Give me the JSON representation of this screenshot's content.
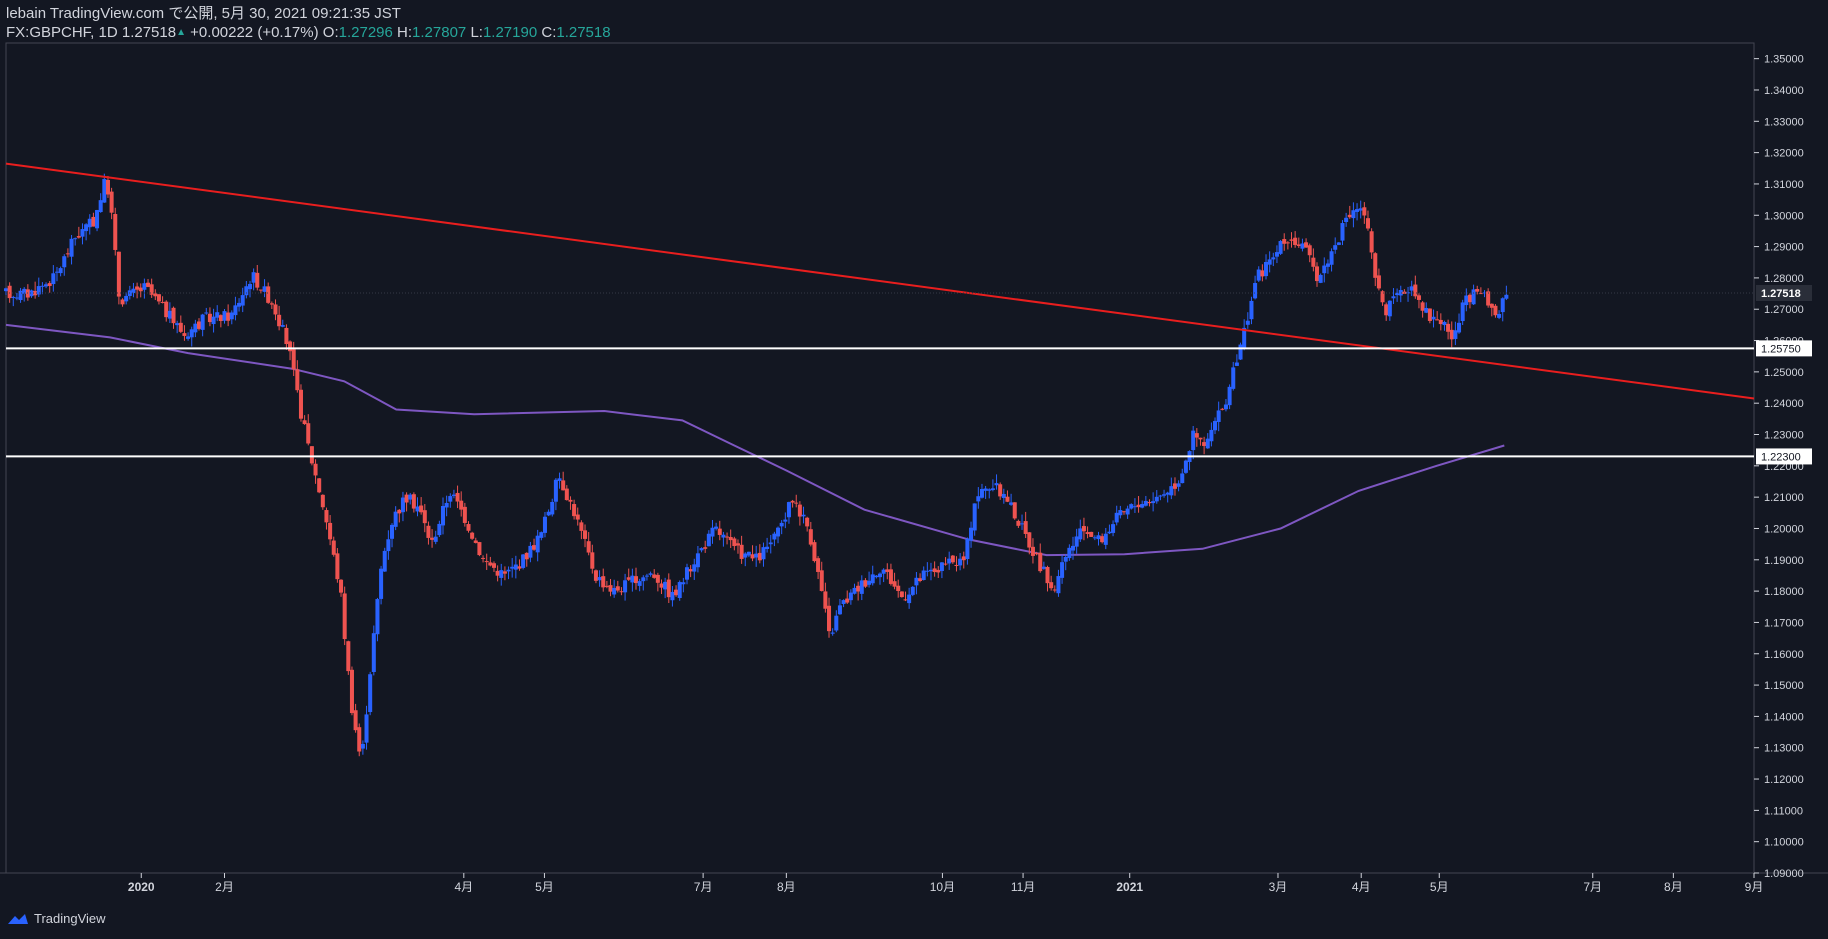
{
  "header": {
    "line1": "lebain TradingView.com で公開, 5月 30, 2021 09:21:35 JST",
    "symbol": "FX:GBPCHF, 1D",
    "last": "1.27518",
    "change": "+0.00222 (+0.17%)",
    "o_label": "O:",
    "o_val": "1.27296",
    "h_label": "H:",
    "h_val": "1.27807",
    "l_label": "L:",
    "l_val": "1.27190",
    "c_label": "C:",
    "c_val": "1.27518"
  },
  "footer": {
    "brand": "TradingView"
  },
  "colors": {
    "background": "#131722",
    "up": "#2962ff",
    "down": "#ef5350",
    "trendline": "#e91e1e",
    "ma": "#7e57c2",
    "hline": "#ffffff",
    "axis": "#d1d4dc",
    "axis_line": "#434651"
  },
  "chart_data": {
    "type": "candlestick",
    "ylim": [
      1.09,
      1.355
    ],
    "y_ticks": [
      "1.35000",
      "1.34000",
      "1.33000",
      "1.32000",
      "1.31000",
      "1.30000",
      "1.29000",
      "1.28000",
      "1.27000",
      "1.26000",
      "1.25000",
      "1.24000",
      "1.23000",
      "1.22000",
      "1.21000",
      "1.20000",
      "1.19000",
      "1.18000",
      "1.17000",
      "1.16000",
      "1.15000",
      "1.14000",
      "1.13000",
      "1.12000",
      "1.11000",
      "1.10000",
      "1.09000"
    ],
    "x_ticks": [
      "2020",
      "2月",
      "4月",
      "5月",
      "7月",
      "8月",
      "10月",
      "11月",
      "2021",
      "3月",
      "4月",
      "5月",
      "7月",
      "8月",
      "9月"
    ],
    "x_tick_days": [
      52,
      84,
      176,
      207,
      268,
      300,
      360,
      391,
      432,
      489,
      521,
      551,
      610,
      641,
      672
    ],
    "x_range_days": [
      0,
      672
    ],
    "last_price_label": "1.27518",
    "horizontal_lines": [
      {
        "price": 1.2575,
        "label": "1.25750"
      },
      {
        "price": 1.223,
        "label": "1.22300"
      }
    ],
    "trendline": {
      "from": {
        "day": 0,
        "price": 1.3165
      },
      "to": {
        "day": 672,
        "price": 1.2415
      }
    },
    "moving_average": [
      [
        0,
        1.265
      ],
      [
        40,
        1.261
      ],
      [
        70,
        1.256
      ],
      [
        110,
        1.251
      ],
      [
        130,
        1.247
      ],
      [
        150,
        1.238
      ],
      [
        180,
        1.2365
      ],
      [
        230,
        1.2375
      ],
      [
        260,
        1.2345
      ],
      [
        280,
        1.2265
      ],
      [
        300,
        1.2185
      ],
      [
        330,
        1.206
      ],
      [
        370,
        1.1965
      ],
      [
        400,
        1.1915
      ],
      [
        430,
        1.1918
      ],
      [
        460,
        1.1935
      ],
      [
        490,
        1.2
      ],
      [
        520,
        1.212
      ],
      [
        550,
        1.22
      ],
      [
        576,
        1.2265
      ]
    ],
    "price_path": [
      [
        0,
        1.275
      ],
      [
        10,
        1.275
      ],
      [
        20,
        1.28
      ],
      [
        28,
        1.293
      ],
      [
        35,
        1.298
      ],
      [
        40,
        1.312
      ],
      [
        42,
        1.3
      ],
      [
        45,
        1.273
      ],
      [
        55,
        1.277
      ],
      [
        62,
        1.27
      ],
      [
        70,
        1.262
      ],
      [
        78,
        1.267
      ],
      [
        88,
        1.268
      ],
      [
        96,
        1.281
      ],
      [
        104,
        1.272
      ],
      [
        110,
        1.258
      ],
      [
        114,
        1.24
      ],
      [
        118,
        1.225
      ],
      [
        124,
        1.205
      ],
      [
        130,
        1.18
      ],
      [
        134,
        1.145
      ],
      [
        138,
        1.125
      ],
      [
        142,
        1.16
      ],
      [
        146,
        1.19
      ],
      [
        150,
        1.203
      ],
      [
        155,
        1.21
      ],
      [
        160,
        1.207
      ],
      [
        165,
        1.195
      ],
      [
        172,
        1.212
      ],
      [
        177,
        1.205
      ],
      [
        185,
        1.19
      ],
      [
        193,
        1.185
      ],
      [
        200,
        1.19
      ],
      [
        207,
        1.198
      ],
      [
        214,
        1.217
      ],
      [
        220,
        1.205
      ],
      [
        228,
        1.185
      ],
      [
        235,
        1.18
      ],
      [
        242,
        1.183
      ],
      [
        250,
        1.186
      ],
      [
        258,
        1.178
      ],
      [
        266,
        1.19
      ],
      [
        274,
        1.2
      ],
      [
        282,
        1.193
      ],
      [
        290,
        1.19
      ],
      [
        298,
        1.198
      ],
      [
        304,
        1.21
      ],
      [
        310,
        1.2
      ],
      [
        315,
        1.18
      ],
      [
        318,
        1.165
      ],
      [
        322,
        1.175
      ],
      [
        330,
        1.182
      ],
      [
        338,
        1.188
      ],
      [
        346,
        1.178
      ],
      [
        354,
        1.185
      ],
      [
        362,
        1.188
      ],
      [
        370,
        1.19
      ],
      [
        374,
        1.21
      ],
      [
        380,
        1.214
      ],
      [
        386,
        1.21
      ],
      [
        392,
        1.2
      ],
      [
        398,
        1.19
      ],
      [
        404,
        1.18
      ],
      [
        410,
        1.193
      ],
      [
        416,
        1.2
      ],
      [
        422,
        1.196
      ],
      [
        428,
        1.203
      ],
      [
        436,
        1.208
      ],
      [
        444,
        1.21
      ],
      [
        452,
        1.215
      ],
      [
        458,
        1.23
      ],
      [
        462,
        1.226
      ],
      [
        470,
        1.24
      ],
      [
        476,
        1.258
      ],
      [
        482,
        1.28
      ],
      [
        488,
        1.286
      ],
      [
        494,
        1.293
      ],
      [
        500,
        1.29
      ],
      [
        506,
        1.28
      ],
      [
        512,
        1.29
      ],
      [
        516,
        1.297
      ],
      [
        520,
        1.303
      ],
      [
        524,
        1.3
      ],
      [
        528,
        1.278
      ],
      [
        532,
        1.27
      ],
      [
        538,
        1.275
      ],
      [
        542,
        1.278
      ],
      [
        548,
        1.268
      ],
      [
        554,
        1.266
      ],
      [
        558,
        1.26
      ],
      [
        562,
        1.272
      ],
      [
        568,
        1.276
      ],
      [
        574,
        1.268
      ],
      [
        578,
        1.275
      ]
    ]
  }
}
